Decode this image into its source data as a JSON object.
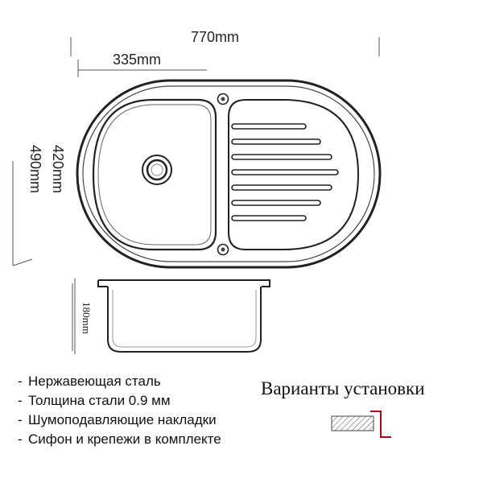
{
  "dimensions": {
    "total_length": "770mm",
    "bowl_length": "335mm",
    "inner_width": "420mm",
    "total_width": "490mm",
    "depth": "180mm"
  },
  "features": [
    {
      "text": "Нержавеющая сталь"
    },
    {
      "text": "Толщина стали 0.9 мм"
    },
    {
      "text": "Шумоподавляющие накладки"
    },
    {
      "text": "Сифон и крепежи в комплекте"
    }
  ],
  "installation": {
    "title": "Варианты установки",
    "icon": "overlay-mount-icon"
  },
  "colors": {
    "line": "#222222",
    "accent": "#b3001b"
  }
}
